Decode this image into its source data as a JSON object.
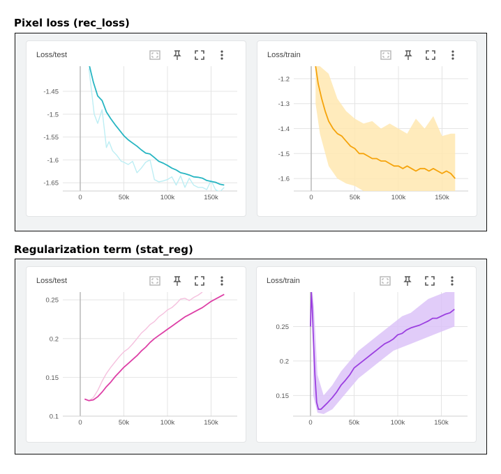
{
  "sections": [
    {
      "title": "Pixel loss (rec_loss)"
    },
    {
      "title": "Regularization term (stat_reg)"
    }
  ],
  "toolbar_icons": [
    "fit-domain-icon",
    "pin-icon",
    "fullscreen-icon",
    "more-vert-icon"
  ],
  "chart_data": [
    {
      "type": "line",
      "title": "Loss/test",
      "x_ticks": [
        "0",
        "50k",
        "100k",
        "150k"
      ],
      "y_ticks": [
        "-1.45",
        "-1.5",
        "-1.55",
        "-1.6",
        "-1.65"
      ],
      "xlim": [
        -20000,
        180000
      ],
      "ylim": [
        -1.668,
        -1.395
      ],
      "grid": true,
      "colors": {
        "smoothed": "#26b5c2",
        "raw": "#bdeef4"
      },
      "series": [
        {
          "role": "raw",
          "x": [
            10000,
            16000,
            20000,
            25000,
            30000,
            33000,
            37000,
            42000,
            47000,
            50000,
            55000,
            60000,
            65000,
            70000,
            75000,
            80000,
            85000,
            90000,
            95000,
            100000,
            105000,
            110000,
            115000,
            120000,
            125000,
            130000,
            135000,
            140000,
            145000,
            150000,
            155000,
            160000,
            165000
          ],
          "y": [
            -1.4,
            -1.5,
            -1.52,
            -1.49,
            -1.573,
            -1.56,
            -1.58,
            -1.59,
            -1.603,
            -1.605,
            -1.61,
            -1.603,
            -1.628,
            -1.618,
            -1.605,
            -1.6,
            -1.643,
            -1.648,
            -1.646,
            -1.643,
            -1.637,
            -1.655,
            -1.635,
            -1.66,
            -1.64,
            -1.655,
            -1.66,
            -1.66,
            -1.665,
            -1.645,
            -1.665,
            -1.67,
            -1.66
          ]
        },
        {
          "role": "smoothed",
          "x": [
            10000,
            15000,
            20000,
            25000,
            30000,
            35000,
            40000,
            45000,
            50000,
            55000,
            60000,
            65000,
            70000,
            75000,
            80000,
            85000,
            90000,
            95000,
            100000,
            105000,
            110000,
            115000,
            120000,
            125000,
            130000,
            135000,
            140000,
            145000,
            150000,
            155000,
            160000,
            165000
          ],
          "y": [
            -1.39,
            -1.43,
            -1.46,
            -1.47,
            -1.495,
            -1.51,
            -1.523,
            -1.535,
            -1.547,
            -1.556,
            -1.563,
            -1.57,
            -1.578,
            -1.585,
            -1.587,
            -1.595,
            -1.603,
            -1.607,
            -1.612,
            -1.618,
            -1.622,
            -1.628,
            -1.63,
            -1.633,
            -1.637,
            -1.638,
            -1.64,
            -1.645,
            -1.647,
            -1.649,
            -1.653,
            -1.655
          ]
        }
      ]
    },
    {
      "type": "line",
      "title": "Loss/train",
      "x_ticks": [
        "0",
        "50k",
        "100k",
        "150k"
      ],
      "y_ticks": [
        "-1.2",
        "-1.3",
        "-1.4",
        "-1.5",
        "-1.6"
      ],
      "xlim": [
        -20000,
        180000
      ],
      "ylim": [
        -1.65,
        -1.15
      ],
      "grid": true,
      "colors": {
        "smoothed": "#f5a30a",
        "raw": "#ffe7b0"
      },
      "series": [
        {
          "role": "smoothed",
          "x": [
            5000,
            8000,
            12000,
            16000,
            20000,
            25000,
            30000,
            35000,
            40000,
            45000,
            50000,
            55000,
            60000,
            65000,
            70000,
            75000,
            80000,
            85000,
            90000,
            95000,
            100000,
            105000,
            110000,
            115000,
            120000,
            125000,
            130000,
            135000,
            140000,
            145000,
            150000,
            155000,
            160000,
            165000
          ],
          "y": [
            -1.15,
            -1.22,
            -1.28,
            -1.33,
            -1.37,
            -1.4,
            -1.42,
            -1.43,
            -1.45,
            -1.47,
            -1.48,
            -1.5,
            -1.5,
            -1.51,
            -1.52,
            -1.52,
            -1.53,
            -1.53,
            -1.54,
            -1.55,
            -1.55,
            -1.56,
            -1.55,
            -1.56,
            -1.57,
            -1.56,
            -1.56,
            -1.57,
            -1.56,
            -1.57,
            -1.58,
            -1.57,
            -1.58,
            -1.6
          ]
        },
        {
          "role": "raw_envelope",
          "x": [
            5000,
            10000,
            20000,
            30000,
            40000,
            50000,
            60000,
            70000,
            80000,
            90000,
            100000,
            110000,
            120000,
            130000,
            140000,
            150000,
            160000,
            165000
          ],
          "upper": [
            -1.15,
            -1.15,
            -1.18,
            -1.28,
            -1.33,
            -1.36,
            -1.38,
            -1.37,
            -1.4,
            -1.38,
            -1.4,
            -1.42,
            -1.36,
            -1.4,
            -1.35,
            -1.43,
            -1.42,
            -1.42
          ],
          "lower": [
            -1.3,
            -1.42,
            -1.55,
            -1.6,
            -1.62,
            -1.63,
            -1.65,
            -1.65,
            -1.65,
            -1.65,
            -1.65,
            -1.65,
            -1.65,
            -1.65,
            -1.65,
            -1.65,
            -1.65,
            -1.65
          ]
        }
      ]
    },
    {
      "type": "line",
      "title": "Loss/test",
      "x_ticks": [
        "0",
        "50k",
        "100k",
        "150k"
      ],
      "y_ticks": [
        "0.25",
        "0.2",
        "0.15",
        "0.1"
      ],
      "xlim": [
        -20000,
        180000
      ],
      "ylim": [
        0.1,
        0.26
      ],
      "grid": true,
      "colors": {
        "smoothed": "#dd3fa6",
        "raw": "#f5c0de"
      },
      "series": [
        {
          "role": "raw",
          "x": [
            5000,
            10000,
            15000,
            20000,
            25000,
            30000,
            35000,
            40000,
            45000,
            50000,
            55000,
            60000,
            65000,
            70000,
            75000,
            80000,
            85000,
            90000,
            95000,
            100000,
            105000,
            110000,
            115000,
            120000,
            125000,
            130000,
            135000,
            140000
          ],
          "y": [
            0.122,
            0.12,
            0.124,
            0.133,
            0.145,
            0.155,
            0.163,
            0.17,
            0.177,
            0.183,
            0.187,
            0.193,
            0.2,
            0.207,
            0.212,
            0.218,
            0.222,
            0.228,
            0.232,
            0.237,
            0.24,
            0.245,
            0.251,
            0.252,
            0.249,
            0.253,
            0.256,
            0.26
          ]
        },
        {
          "role": "smoothed",
          "x": [
            5000,
            10000,
            15000,
            20000,
            25000,
            30000,
            35000,
            40000,
            45000,
            50000,
            55000,
            60000,
            65000,
            70000,
            75000,
            80000,
            85000,
            90000,
            95000,
            100000,
            105000,
            110000,
            115000,
            120000,
            125000,
            130000,
            135000,
            140000,
            145000,
            150000,
            155000,
            160000,
            165000
          ],
          "y": [
            0.122,
            0.12,
            0.121,
            0.125,
            0.131,
            0.138,
            0.144,
            0.151,
            0.157,
            0.163,
            0.168,
            0.173,
            0.178,
            0.184,
            0.189,
            0.195,
            0.2,
            0.204,
            0.208,
            0.212,
            0.216,
            0.22,
            0.224,
            0.228,
            0.231,
            0.234,
            0.237,
            0.24,
            0.244,
            0.248,
            0.251,
            0.254,
            0.257
          ]
        }
      ]
    },
    {
      "type": "line",
      "title": "Loss/train",
      "x_ticks": [
        "0",
        "50k",
        "100k",
        "150k"
      ],
      "y_ticks": [
        "0.25",
        "0.2",
        "0.15"
      ],
      "xlim": [
        -20000,
        180000
      ],
      "ylim": [
        0.12,
        0.3
      ],
      "grid": true,
      "colors": {
        "smoothed": "#9b3fe0",
        "raw": "#dcc3f8"
      },
      "series": [
        {
          "role": "smoothed",
          "x": [
            0,
            1000,
            2000,
            3000,
            5000,
            7000,
            9000,
            12000,
            16000,
            20000,
            25000,
            30000,
            35000,
            40000,
            45000,
            50000,
            55000,
            60000,
            65000,
            70000,
            75000,
            80000,
            85000,
            90000,
            95000,
            100000,
            105000,
            110000,
            115000,
            120000,
            125000,
            130000,
            135000,
            140000,
            145000,
            150000,
            155000,
            160000,
            165000
          ],
          "y": [
            0.25,
            0.3,
            0.28,
            0.24,
            0.18,
            0.14,
            0.13,
            0.13,
            0.135,
            0.14,
            0.147,
            0.155,
            0.165,
            0.172,
            0.18,
            0.19,
            0.195,
            0.2,
            0.205,
            0.21,
            0.215,
            0.22,
            0.225,
            0.228,
            0.232,
            0.238,
            0.24,
            0.245,
            0.248,
            0.25,
            0.252,
            0.255,
            0.258,
            0.262,
            0.262,
            0.265,
            0.268,
            0.27,
            0.275
          ]
        },
        {
          "role": "raw_envelope",
          "x": [
            3000,
            8000,
            15000,
            25000,
            35000,
            45000,
            55000,
            65000,
            75000,
            85000,
            95000,
            105000,
            115000,
            125000,
            135000,
            145000,
            155000,
            165000
          ],
          "upper": [
            0.3,
            0.18,
            0.15,
            0.165,
            0.185,
            0.2,
            0.215,
            0.225,
            0.235,
            0.245,
            0.255,
            0.265,
            0.27,
            0.28,
            0.29,
            0.295,
            0.3,
            0.3
          ],
          "lower": [
            0.15,
            0.125,
            0.123,
            0.13,
            0.145,
            0.16,
            0.175,
            0.185,
            0.195,
            0.205,
            0.215,
            0.22,
            0.225,
            0.23,
            0.235,
            0.24,
            0.245,
            0.25
          ]
        }
      ]
    }
  ]
}
